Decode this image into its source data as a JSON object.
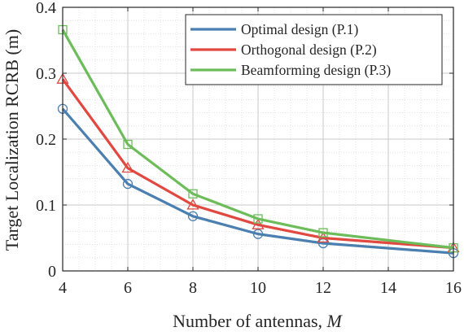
{
  "chart_data": {
    "type": "line",
    "xlabel": "Number of antennas, ",
    "xlabel_var": "M",
    "ylabel": "Target Localization RCRB (m)",
    "xlim": [
      4,
      16
    ],
    "ylim": [
      0,
      0.4
    ],
    "xticks": [
      4,
      6,
      8,
      10,
      12,
      14,
      16
    ],
    "yticks": [
      0,
      0.1,
      0.2,
      0.3,
      0.4
    ],
    "xtick_labels": [
      "4",
      "6",
      "8",
      "10",
      "12",
      "14",
      "16"
    ],
    "ytick_labels": [
      "0",
      "0.1",
      "0.2",
      "0.3",
      "0.4"
    ],
    "grid": true,
    "minor_grid": true,
    "legend_position": "top-right",
    "x": [
      4,
      6,
      8,
      10,
      12,
      14,
      16
    ],
    "series": [
      {
        "name": "Optimal design (P.1)",
        "color": "#4a7fb0",
        "marker": "circle",
        "values": [
          0.246,
          0.132,
          0.083,
          0.056,
          0.042,
          null,
          0.027
        ]
      },
      {
        "name": "Orthogonal design (P.2)",
        "color": "#e04840",
        "marker": "triangle",
        "values": [
          0.291,
          0.156,
          0.1,
          0.07,
          0.05,
          null,
          0.035
        ]
      },
      {
        "name": "Beamforming design (P.3)",
        "color": "#6cbd5a",
        "marker": "square",
        "values": [
          0.366,
          0.192,
          0.117,
          0.079,
          0.058,
          null,
          0.035
        ]
      }
    ]
  }
}
